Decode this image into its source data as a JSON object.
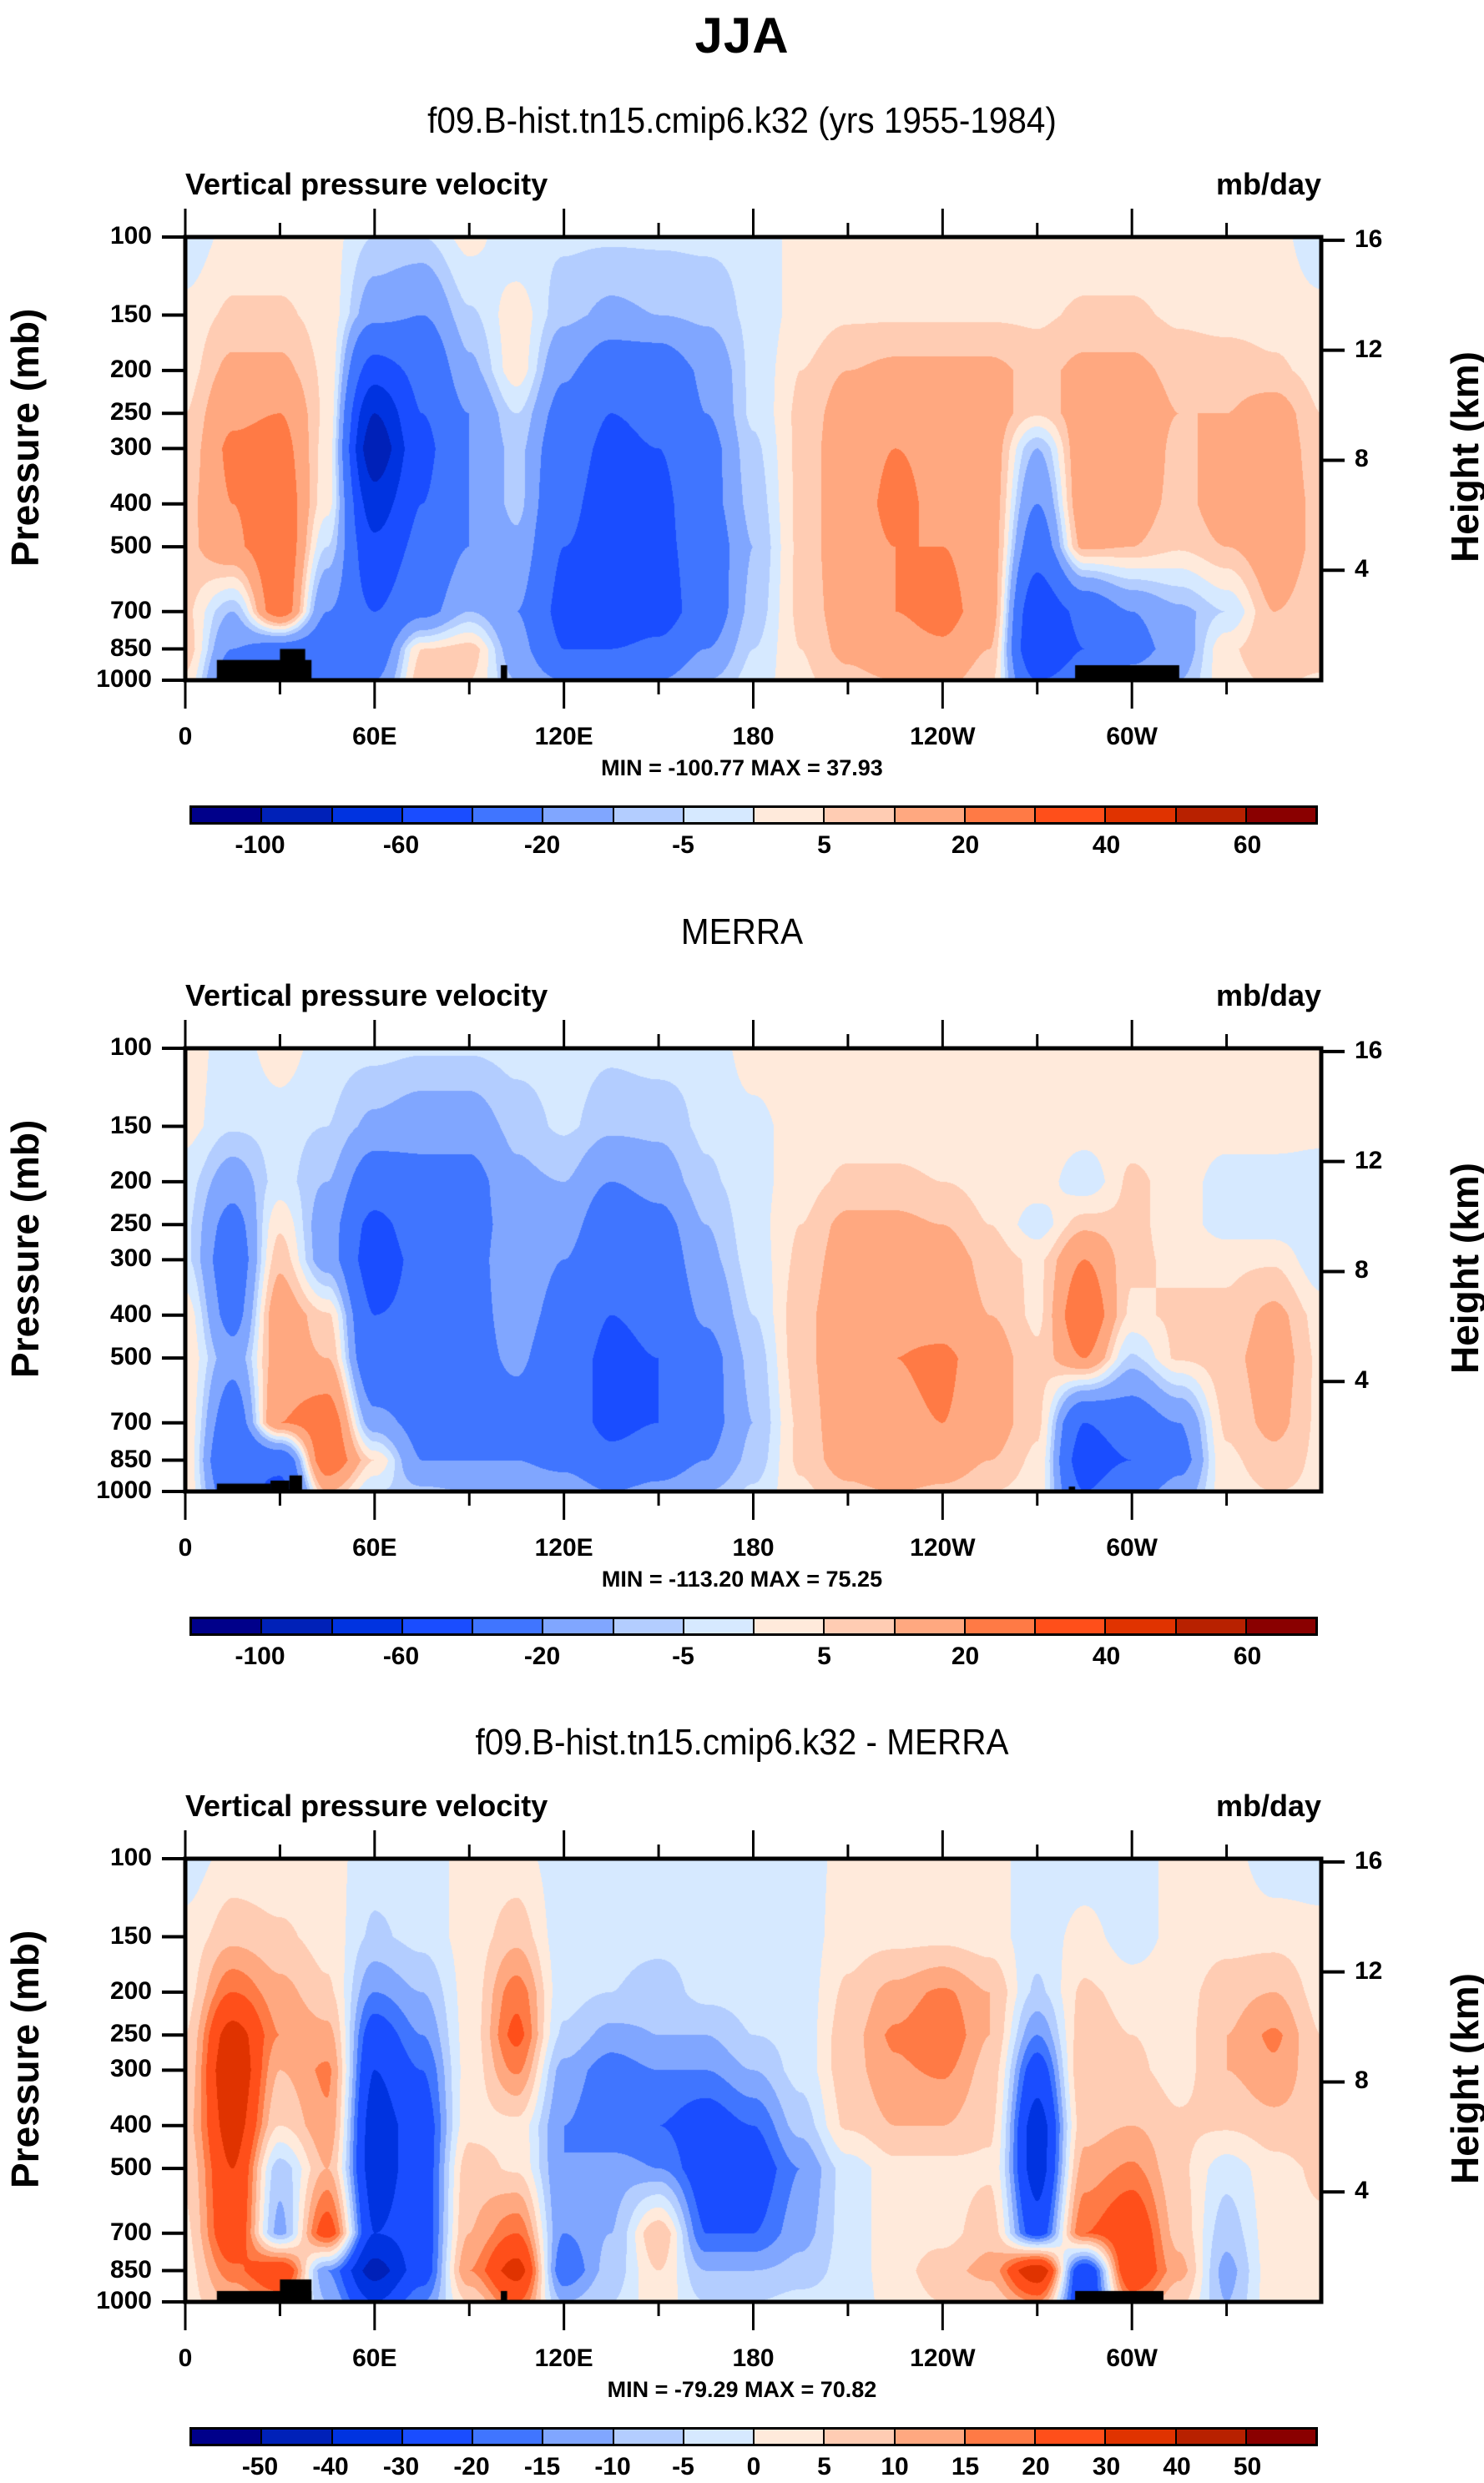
{
  "figure": {
    "title": "JJA"
  },
  "colors": {
    "palette": [
      "#00008a",
      "#0021b8",
      "#0033e0",
      "#1a4dff",
      "#4075ff",
      "#80a6ff",
      "#b3cdff",
      "#d6e9ff",
      "#ffeadb",
      "#ffccb3",
      "#ffa880",
      "#ff7a45",
      "#ff4f1a",
      "#e03300",
      "#b82100",
      "#8a0000"
    ]
  },
  "chart_data": [
    {
      "type": "heatmap",
      "title": "f09.B-hist.tn15.cmip6.k32 (yrs 1955-1984)",
      "left_string": "Vertical pressure velocity",
      "right_string": "mb/day",
      "xlabel": "",
      "ylabel": "Pressure (mb)",
      "ylabel_right": "Height (km)",
      "x_ticks": [
        "0",
        "60E",
        "120E",
        "180",
        "120W",
        "60W"
      ],
      "x_tick_lons": [
        0,
        60,
        120,
        180,
        240,
        300
      ],
      "x_range": [
        0,
        360
      ],
      "y_ticks": [
        100,
        150,
        200,
        250,
        300,
        400,
        500,
        700,
        850,
        1000
      ],
      "y_range": [
        100,
        1000
      ],
      "y_scale": "log",
      "y_ticks_right": [
        16,
        12,
        8,
        4
      ],
      "stats": "MIN = -100.77  MAX =  37.93",
      "levels": [
        -100,
        -80,
        -60,
        -40,
        -20,
        -10,
        -5,
        0,
        5,
        10,
        20,
        30,
        40,
        50,
        60
      ],
      "level_labels": [
        "-100",
        "-60",
        "-20",
        "-5",
        "5",
        "20",
        "40",
        "60"
      ],
      "level_label_index": [
        1,
        3,
        5,
        7,
        9,
        11,
        13,
        15
      ],
      "lon": [
        0,
        15,
        30,
        45,
        60,
        75,
        90,
        105,
        120,
        135,
        150,
        165,
        180,
        195,
        210,
        225,
        240,
        255,
        270,
        285,
        300,
        315,
        330,
        345,
        360
      ],
      "lev": [
        100,
        150,
        200,
        250,
        300,
        400,
        500,
        700,
        850,
        1000
      ],
      "values": [
        [
          -4,
          2,
          2,
          2,
          -5,
          -5,
          2,
          -4,
          -4,
          -4,
          -4,
          -4,
          -4,
          2,
          2,
          2,
          2,
          2,
          2,
          2,
          2,
          2,
          2,
          2,
          -4
        ],
        [
          2,
          6,
          6,
          3,
          -15,
          -20,
          -6,
          3,
          -8,
          -12,
          -10,
          -8,
          -4,
          2,
          4,
          4,
          4,
          4,
          4,
          6,
          6,
          4,
          3,
          3,
          2
        ],
        [
          3,
          12,
          12,
          4,
          -50,
          -35,
          -12,
          3,
          -18,
          -30,
          -30,
          -18,
          -4,
          5,
          10,
          12,
          12,
          12,
          8,
          12,
          12,
          8,
          8,
          6,
          3
        ],
        [
          5,
          18,
          20,
          4,
          -80,
          -40,
          -20,
          -5,
          -25,
          -40,
          -35,
          -20,
          -4,
          6,
          14,
          16,
          16,
          14,
          6,
          14,
          16,
          10,
          10,
          14,
          5
        ],
        [
          6,
          22,
          24,
          3,
          -95,
          -45,
          -20,
          -8,
          -30,
          -45,
          -40,
          -25,
          -6,
          6,
          16,
          20,
          18,
          14,
          -10,
          16,
          18,
          8,
          14,
          16,
          6
        ],
        [
          8,
          20,
          28,
          2,
          -70,
          -40,
          -20,
          -8,
          -35,
          -50,
          -45,
          -25,
          -8,
          6,
          16,
          22,
          18,
          14,
          -20,
          16,
          14,
          8,
          14,
          16,
          8
        ],
        [
          8,
          18,
          30,
          -5,
          -55,
          -35,
          -20,
          -12,
          -40,
          -50,
          -45,
          -30,
          -10,
          6,
          16,
          20,
          20,
          14,
          -30,
          12,
          10,
          6,
          10,
          16,
          8
        ],
        [
          6,
          -10,
          28,
          -20,
          -40,
          -25,
          -10,
          -20,
          -45,
          -55,
          -50,
          -30,
          -8,
          6,
          14,
          20,
          24,
          14,
          -55,
          -35,
          -20,
          -12,
          -5,
          10,
          6
        ],
        [
          8,
          -20,
          -30,
          -30,
          -30,
          5,
          8,
          -15,
          -40,
          -40,
          -35,
          -20,
          -5,
          5,
          12,
          16,
          18,
          10,
          -60,
          -40,
          -25,
          -15,
          4,
          10,
          8
        ],
        [
          4,
          -30,
          -40,
          -20,
          -20,
          8,
          5,
          -10,
          -20,
          -20,
          -20,
          -10,
          -3,
          4,
          8,
          10,
          12,
          6,
          -40,
          -30,
          -15,
          -10,
          3,
          6,
          4
        ]
      ],
      "topography": [
        [
          10,
          40,
          900
        ],
        [
          30,
          38,
          850
        ],
        [
          100,
          102,
          925
        ],
        [
          282,
          315,
          925
        ]
      ]
    },
    {
      "type": "heatmap",
      "title": "MERRA",
      "left_string": "Vertical pressure velocity",
      "right_string": "mb/day",
      "xlabel": "",
      "ylabel": "Pressure (mb)",
      "ylabel_right": "Height (km)",
      "x_ticks": [
        "0",
        "60E",
        "120E",
        "180",
        "120W",
        "60W"
      ],
      "x_tick_lons": [
        0,
        60,
        120,
        180,
        240,
        300
      ],
      "x_range": [
        0,
        360
      ],
      "y_ticks": [
        100,
        150,
        200,
        250,
        300,
        400,
        500,
        700,
        850,
        1000
      ],
      "y_range": [
        100,
        1000
      ],
      "y_scale": "log",
      "y_ticks_right": [
        16,
        12,
        8,
        4
      ],
      "stats": "MIN = -113.20  MAX =  75.25",
      "levels": [
        -100,
        -80,
        -60,
        -40,
        -20,
        -10,
        -5,
        0,
        5,
        10,
        20,
        30,
        40,
        50,
        60
      ],
      "level_labels": [
        "-100",
        "-60",
        "-20",
        "-5",
        "5",
        "20",
        "40",
        "60"
      ],
      "level_label_index": [
        1,
        3,
        5,
        7,
        9,
        11,
        13,
        15
      ],
      "lon": [
        0,
        15,
        30,
        45,
        60,
        75,
        90,
        105,
        120,
        135,
        150,
        165,
        180,
        195,
        210,
        225,
        240,
        255,
        270,
        285,
        300,
        315,
        330,
        345,
        360
      ],
      "lev": [
        100,
        150,
        200,
        250,
        300,
        400,
        500,
        700,
        850,
        1000
      ],
      "values": [
        [
          3,
          -3,
          3,
          -3,
          -3,
          -4,
          -4,
          -3,
          -3,
          -4,
          -3,
          -4,
          3,
          3,
          3,
          3,
          3,
          3,
          3,
          3,
          3,
          3,
          3,
          3,
          3
        ],
        [
          2,
          -4,
          -3,
          -5,
          -12,
          -15,
          -15,
          -8,
          -4,
          -8,
          -8,
          -4,
          -2,
          3,
          3,
          3,
          3,
          3,
          3,
          3,
          3,
          3,
          3,
          3,
          2
        ],
        [
          -3,
          -15,
          -3,
          -10,
          -30,
          -25,
          -25,
          -12,
          -10,
          -20,
          -15,
          -6,
          -2,
          3,
          6,
          6,
          5,
          3,
          3,
          -4,
          6,
          3,
          -3,
          -3,
          -3
        ],
        [
          -4,
          -25,
          4,
          -15,
          -45,
          -30,
          -25,
          -15,
          -15,
          -30,
          -25,
          -10,
          -2,
          5,
          12,
          12,
          10,
          5,
          -3,
          8,
          6,
          3,
          -3,
          -3,
          -4
        ],
        [
          -4,
          -30,
          8,
          -15,
          -50,
          -35,
          -25,
          -12,
          -20,
          -35,
          -30,
          -12,
          -3,
          6,
          14,
          16,
          14,
          8,
          4,
          20,
          6,
          4,
          4,
          4,
          -4
        ],
        [
          3,
          -25,
          16,
          6,
          -40,
          -35,
          -25,
          -15,
          -25,
          -40,
          -35,
          -18,
          -5,
          8,
          16,
          18,
          16,
          10,
          4,
          30,
          4,
          6,
          6,
          12,
          3
        ],
        [
          4,
          -15,
          14,
          10,
          -35,
          -30,
          -25,
          -18,
          -30,
          -45,
          -40,
          -25,
          -8,
          8,
          16,
          20,
          22,
          14,
          6,
          20,
          -6,
          6,
          8,
          14,
          4
        ],
        [
          4,
          -30,
          20,
          28,
          -15,
          -25,
          -25,
          -25,
          -30,
          -45,
          -40,
          -25,
          -10,
          6,
          16,
          18,
          20,
          14,
          6,
          -40,
          -30,
          -20,
          6,
          12,
          4
        ],
        [
          4,
          -40,
          -35,
          30,
          5,
          -20,
          -20,
          -20,
          -25,
          -35,
          -30,
          -20,
          -8,
          6,
          14,
          20,
          16,
          10,
          4,
          -50,
          -40,
          -25,
          4,
          8,
          4
        ],
        [
          4,
          -30,
          -45,
          10,
          -5,
          -8,
          -10,
          -12,
          -12,
          -20,
          -15,
          -10,
          -4,
          4,
          8,
          10,
          8,
          5,
          3,
          -40,
          -25,
          -15,
          3,
          5,
          4
        ]
      ],
      "topography": [
        [
          10,
          27,
          960
        ],
        [
          27,
          33,
          945
        ],
        [
          33,
          37,
          920
        ],
        [
          280,
          282,
          975
        ]
      ]
    },
    {
      "type": "heatmap",
      "title": "f09.B-hist.tn15.cmip6.k32 - MERRA",
      "left_string": "Vertical pressure velocity",
      "right_string": "mb/day",
      "xlabel": "",
      "ylabel": "Pressure (mb)",
      "ylabel_right": "Height (km)",
      "x_ticks": [
        "0",
        "60E",
        "120E",
        "180",
        "120W",
        "60W"
      ],
      "x_tick_lons": [
        0,
        60,
        120,
        180,
        240,
        300
      ],
      "x_range": [
        0,
        360
      ],
      "y_ticks": [
        100,
        150,
        200,
        250,
        300,
        400,
        500,
        700,
        850,
        1000
      ],
      "y_range": [
        100,
        1000
      ],
      "y_scale": "log",
      "y_ticks_right": [
        16,
        12,
        8,
        4
      ],
      "stats": "MIN = -79.29  MAX =  70.82",
      "levels": [
        -50,
        -40,
        -30,
        -20,
        -15,
        -10,
        -5,
        0,
        5,
        10,
        15,
        20,
        30,
        40,
        50
      ],
      "level_labels": [
        "-50",
        "-40",
        "-30",
        "-20",
        "-15",
        "-10",
        "-5",
        "0",
        "5",
        "10",
        "15",
        "20",
        "30",
        "40",
        "50"
      ],
      "level_label_index": [
        1,
        2,
        3,
        4,
        5,
        6,
        7,
        8,
        9,
        10,
        11,
        12,
        13,
        14,
        15
      ],
      "lon": [
        0,
        15,
        30,
        45,
        60,
        75,
        90,
        105,
        120,
        135,
        150,
        165,
        180,
        195,
        210,
        225,
        240,
        255,
        270,
        285,
        300,
        315,
        330,
        345,
        360
      ],
      "lev": [
        100,
        150,
        200,
        250,
        300,
        400,
        500,
        700,
        850,
        1000
      ],
      "values": [
        [
          -3,
          2,
          2,
          2,
          -3,
          -3,
          2,
          2,
          -3,
          -3,
          -3,
          -3,
          -3,
          -3,
          2,
          2,
          2,
          2,
          -3,
          -3,
          -3,
          2,
          2,
          -3,
          -3
        ],
        [
          2,
          8,
          6,
          3,
          -6,
          -3,
          2,
          8,
          -3,
          -3,
          -3,
          -3,
          -3,
          -3,
          3,
          3,
          3,
          2,
          -3,
          2,
          -3,
          2,
          3,
          3,
          2
        ],
        [
          3,
          20,
          12,
          6,
          -15,
          -10,
          2,
          18,
          -3,
          -5,
          -8,
          -3,
          -3,
          -3,
          6,
          12,
          16,
          10,
          -6,
          6,
          3,
          3,
          8,
          10,
          3
        ],
        [
          5,
          35,
          15,
          12,
          -25,
          -15,
          2,
          22,
          -6,
          -12,
          -10,
          -10,
          -5,
          -3,
          8,
          16,
          20,
          10,
          -15,
          8,
          5,
          3,
          10,
          16,
          5
        ],
        [
          6,
          40,
          10,
          16,
          -30,
          -20,
          2,
          16,
          -12,
          -18,
          -15,
          -15,
          -10,
          -3,
          8,
          14,
          16,
          8,
          -25,
          10,
          6,
          3,
          10,
          14,
          6
        ],
        [
          8,
          35,
          5,
          14,
          -35,
          -25,
          3,
          3,
          -15,
          -20,
          -20,
          -25,
          -20,
          -8,
          6,
          10,
          10,
          6,
          -35,
          8,
          10,
          6,
          6,
          8,
          8
        ],
        [
          6,
          30,
          -8,
          10,
          -35,
          -25,
          8,
          4,
          -15,
          -12,
          -15,
          -25,
          -25,
          -15,
          -3,
          3,
          3,
          4,
          -35,
          12,
          16,
          6,
          -3,
          3,
          6
        ],
        [
          4,
          28,
          -12,
          25,
          -30,
          -25,
          10,
          20,
          -15,
          -10,
          10,
          -20,
          -20,
          -12,
          -3,
          3,
          3,
          8,
          -25,
          20,
          28,
          8,
          -8,
          3,
          4
        ],
        [
          3,
          18,
          30,
          -15,
          -45,
          -25,
          15,
          35,
          -20,
          -8,
          5,
          -10,
          -10,
          -8,
          -3,
          3,
          8,
          12,
          40,
          -30,
          30,
          12,
          -12,
          3,
          3
        ],
        [
          3,
          10,
          15,
          -10,
          -30,
          -15,
          5,
          20,
          -10,
          -5,
          3,
          -5,
          -5,
          -3,
          -3,
          2,
          5,
          6,
          15,
          -30,
          15,
          6,
          -10,
          3,
          3
        ]
      ],
      "topography": [
        [
          10,
          40,
          945
        ],
        [
          30,
          40,
          890
        ],
        [
          100,
          102,
          945
        ],
        [
          282,
          310,
          945
        ]
      ]
    }
  ]
}
